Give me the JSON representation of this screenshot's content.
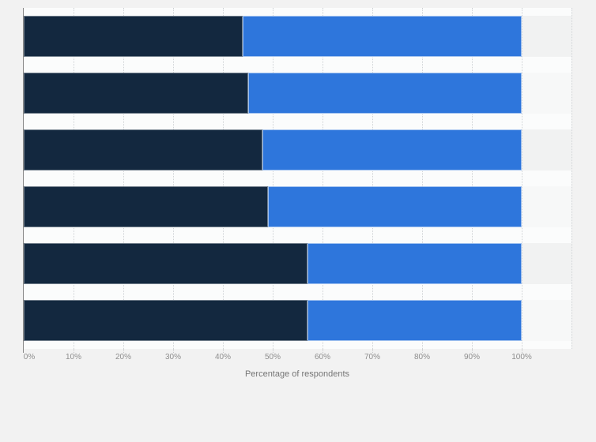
{
  "page": {
    "background_color": "#f2f2f2",
    "title": ""
  },
  "chart_data": {
    "type": "bar",
    "orientation": "horizontal",
    "stacked": true,
    "title": "",
    "categories": [
      "",
      "",
      "",
      "",
      "",
      ""
    ],
    "series": [
      {
        "name": "dark-navy-segment",
        "color": "#13283f",
        "values": [
          44,
          45,
          48,
          49,
          57,
          57
        ]
      },
      {
        "name": "blue-segment",
        "color": "#2e76dc",
        "values": [
          56,
          55,
          52,
          51,
          43,
          43
        ]
      }
    ],
    "xlabel": "Percentage of respondents",
    "ylabel": "",
    "x_ticks": [
      "0%",
      "10%",
      "20%",
      "30%",
      "40%",
      "50%",
      "60%",
      "70%",
      "80%",
      "90%",
      "100%"
    ],
    "x_tick_values": [
      0,
      10,
      20,
      30,
      40,
      50,
      60,
      70,
      80,
      90,
      100
    ],
    "xlim": [
      0,
      110
    ],
    "grid": "vertical-dotted",
    "legend": "none",
    "colors": {
      "gridline": "#d0d3d6",
      "axis_line": "#868686",
      "tick_label": "#8e8e8e",
      "axis_title": "#757575",
      "row_stripe_even": "#f1f2f2",
      "row_stripe_odd": "#f7f8f8",
      "gap_band": "#fbfcfc"
    }
  }
}
